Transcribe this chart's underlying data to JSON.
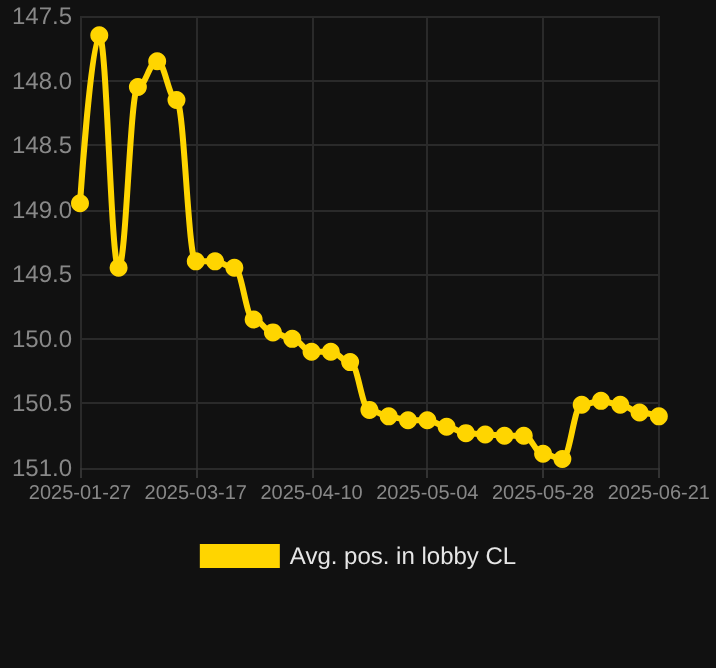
{
  "chart_data": {
    "type": "line",
    "categories": [
      "2025-01-27",
      null,
      null,
      null,
      null,
      null,
      "2025-03-17",
      null,
      null,
      null,
      null,
      null,
      "2025-04-10",
      null,
      null,
      null,
      null,
      null,
      "2025-05-04",
      null,
      null,
      null,
      null,
      null,
      "2025-05-28",
      null,
      null,
      null,
      null,
      null,
      "2025-06-21"
    ],
    "series": [
      {
        "name": "Avg. pos. in lobby CL",
        "color": "#ffd500",
        "values": [
          148.95,
          147.65,
          149.45,
          148.05,
          147.85,
          148.15,
          149.4,
          149.4,
          149.45,
          149.85,
          149.95,
          150.0,
          150.1,
          150.1,
          150.18,
          150.55,
          150.6,
          150.63,
          150.63,
          150.68,
          150.73,
          150.74,
          150.75,
          150.75,
          150.89,
          150.93,
          150.51,
          150.48,
          150.51,
          150.57,
          150.6
        ]
      }
    ],
    "ylim": [
      151.0,
      147.5
    ],
    "yticks": [
      {
        "value": 147.5,
        "label": "147.5"
      },
      {
        "value": 148,
        "label": "148.0"
      },
      {
        "value": 148.5,
        "label": "148.5"
      },
      {
        "value": 149,
        "label": "149.0"
      },
      {
        "value": 149.5,
        "label": "149.5"
      },
      {
        "value": 150,
        "label": "150.0"
      },
      {
        "value": 150.5,
        "label": "150.5"
      },
      {
        "value": 151,
        "label": "151.0"
      }
    ],
    "grid": true,
    "legend": "bottom",
    "marker": "circle",
    "line_style": "solid"
  }
}
